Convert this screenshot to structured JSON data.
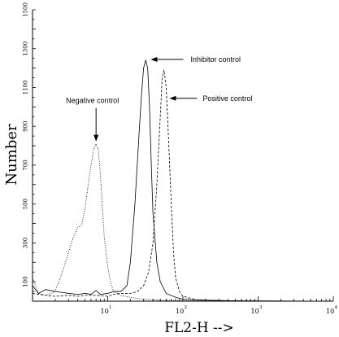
{
  "chart_data": {
    "type": "line",
    "title": "",
    "xlabel": "FL2-H -->",
    "ylabel": "Number",
    "x_scale": "log",
    "xlim": [
      1,
      10000
    ],
    "ylim": [
      0,
      1500
    ],
    "y_ticks": [
      100,
      300,
      500,
      700,
      900,
      1100,
      1300,
      1500
    ],
    "y_tick_labels": [
      "100",
      "300",
      "500",
      "700",
      "900",
      "1100",
      "1300",
      "1500"
    ],
    "x_ticks": [
      {
        "value": 10,
        "base": "10",
        "exp": "1"
      },
      {
        "value": 100,
        "base": "10",
        "exp": "2"
      },
      {
        "value": 1000,
        "base": "10",
        "exp": "3"
      },
      {
        "value": 10000,
        "base": "10",
        "exp": "4"
      }
    ],
    "grid": false,
    "legend": "none",
    "series": [
      {
        "style": "dotted",
        "points": [
          [
            1.0,
            120
          ],
          [
            1.2,
            40
          ],
          [
            1.5,
            30
          ],
          [
            2.0,
            50
          ],
          [
            2.5,
            150
          ],
          [
            3.0,
            250
          ],
          [
            3.5,
            330
          ],
          [
            4.0,
            380
          ],
          [
            4.5,
            390
          ],
          [
            5.0,
            480
          ],
          [
            5.5,
            600
          ],
          [
            6.0,
            700
          ],
          [
            6.5,
            780
          ],
          [
            7.0,
            810
          ],
          [
            7.5,
            780
          ],
          [
            8.0,
            650
          ],
          [
            8.5,
            480
          ],
          [
            9.0,
            330
          ],
          [
            10.0,
            180
          ],
          [
            11.0,
            90
          ],
          [
            12.0,
            50
          ],
          [
            15.0,
            30
          ],
          [
            20.0,
            20
          ],
          [
            30.0,
            10
          ],
          [
            50.0,
            5
          ],
          [
            100,
            3
          ],
          [
            200,
            2
          ],
          [
            500,
            1
          ],
          [
            10000,
            0
          ]
        ]
      },
      {
        "style": "solid",
        "points": [
          [
            1.0,
            80
          ],
          [
            1.2,
            40
          ],
          [
            1.5,
            60
          ],
          [
            2.0,
            50
          ],
          [
            2.5,
            45
          ],
          [
            3.0,
            40
          ],
          [
            4.0,
            35
          ],
          [
            5.0,
            40
          ],
          [
            6.0,
            35
          ],
          [
            7.0,
            55
          ],
          [
            8.0,
            35
          ],
          [
            10.0,
            40
          ],
          [
            12.0,
            50
          ],
          [
            15.0,
            50
          ],
          [
            18.0,
            80
          ],
          [
            20.0,
            200
          ],
          [
            23.0,
            500
          ],
          [
            26.0,
            850
          ],
          [
            28.0,
            1050
          ],
          [
            30.0,
            1200
          ],
          [
            32.0,
            1240
          ],
          [
            34.0,
            1200
          ],
          [
            36.0,
            1000
          ],
          [
            38.0,
            700
          ],
          [
            40.0,
            450
          ],
          [
            45.0,
            200
          ],
          [
            50.0,
            100
          ],
          [
            60.0,
            40
          ],
          [
            80.0,
            20
          ],
          [
            100,
            10
          ],
          [
            200,
            5
          ],
          [
            500,
            2
          ],
          [
            10000,
            0
          ]
        ]
      },
      {
        "style": "dashed",
        "points": [
          [
            1.0,
            40
          ],
          [
            1.5,
            30
          ],
          [
            2.0,
            25
          ],
          [
            3.0,
            30
          ],
          [
            4.0,
            25
          ],
          [
            5.0,
            30
          ],
          [
            7.0,
            30
          ],
          [
            10.0,
            25
          ],
          [
            12.0,
            35
          ],
          [
            15.0,
            40
          ],
          [
            20.0,
            40
          ],
          [
            25.0,
            50
          ],
          [
            30.0,
            80
          ],
          [
            35.0,
            150
          ],
          [
            40.0,
            300
          ],
          [
            45.0,
            600
          ],
          [
            50.0,
            950
          ],
          [
            53.0,
            1150
          ],
          [
            56.0,
            1190
          ],
          [
            60.0,
            1100
          ],
          [
            65.0,
            800
          ],
          [
            70.0,
            500
          ],
          [
            75.0,
            250
          ],
          [
            80.0,
            120
          ],
          [
            90.0,
            50
          ],
          [
            100,
            25
          ],
          [
            150,
            8
          ],
          [
            300,
            3
          ],
          [
            1000,
            1
          ],
          [
            10000,
            0
          ]
        ]
      }
    ],
    "annotations": [
      {
        "text": "Negative control",
        "target": [
          7.0,
          810
        ]
      },
      {
        "text": "Inhibitor control",
        "target": [
          33.0,
          1240
        ]
      },
      {
        "text": "Positive control",
        "target": [
          57.0,
          1170
        ]
      }
    ]
  }
}
